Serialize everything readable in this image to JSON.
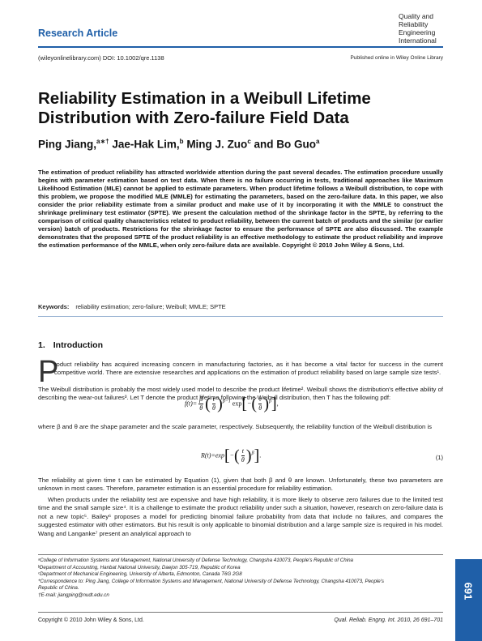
{
  "header": {
    "article_type": "Research Article",
    "journal_lines": [
      "Quality and",
      "Reliability",
      "Engineering",
      "International"
    ],
    "doi": "(wileyonlinelibrary.com) DOI: 10.1002/qre.1138",
    "published": "Published online in Wiley Online Library"
  },
  "title_lines": [
    "Reliability Estimation in a Weibull Lifetime",
    "Distribution with Zero-failure Field Data"
  ],
  "authors": [
    {
      "name": "Ping Jiang,",
      "sup": "a∗†"
    },
    {
      "name": " Jae-Hak Lim,",
      "sup": "b"
    },
    {
      "name": " Ming J. Zuo",
      "sup": "c"
    },
    {
      "name": " and Bo Guo",
      "sup": "a"
    }
  ],
  "abstract": "The estimation of product reliability has attracted worldwide attention during the past several decades. The estimation procedure usually begins with parameter estimation based on test data. When there is no failure occurring in tests, traditional approaches like Maximum Likelihood Estimation (MLE) cannot be applied to estimate parameters. When product lifetime follows a Weibull distribution, to cope with this problem, we propose the modified MLE (MMLE) for estimating the parameters, based on the zero-failure data. In this paper, we also consider the prior reliability estimate from a similar product and make use of it by incorporating it with the MMLE to construct the shrinkage preliminary test estimator (SPTE). We present the calculation method of the shrinkage factor in the SPTE, by referring to the comparison of critical quality characteristics related to product reliability, between the current batch of products and the similar (or earlier version) batch of products. Restrictions for the shrinkage factor to ensure the performance of SPTE are also discussed. The example demonstrates that the proposed SPTE of the product reliability is an effective methodology to estimate the product reliability and improve the estimation performance of the MMLE, when only zero-failure data are available. Copyright © 2010 John Wiley & Sons, Ltd.",
  "keywords": {
    "label": "Keywords:",
    "value": "reliability estimation; zero-failure; Weibull; MMLE; SPTE"
  },
  "section": {
    "number": "1.",
    "title": "Introduction"
  },
  "intro": {
    "dropcap": "P",
    "p1": "roduct reliability has acquired increasing concern in manufacturing factories, as it has become a vital factor for success in the current competitive world. There are extensive researches and applications on the estimation of product reliability based on large sample size tests¹.",
    "p2": "The Weibull distribution is probably the most widely used model to describe the product lifetime². Weibull shows the distribution's effective ability of describing the wear-out failures³. Let T denote the product lifetime following the Weibull distribution, then T has the following pdf:",
    "p3": "where β and θ are the shape parameter and the scale parameter, respectively. Subsequently, the reliability function of the Weibull distribution is",
    "p4": "The reliability at given time t can be estimated by Equation (1), given that both β and θ are known. Unfortunately, these two parameters are unknown in most cases. Therefore, parameter estimation is an essential procedure for reliability estimation.",
    "p5": "When products under the reliability test are expensive and have high reliability, it is more likely to observe zero failures due to the limited test time and the small sample size⁴. It is a challenge to estimate the product reliability under such a situation, however, research on zero-failure data is not a new topic⁵. Bailey⁶ proposes a model for predicting binomial failure probability from data that include no failures, and compares the suggested estimator with other estimators. But his result is only applicable to binomial distribution and a large sample size is required in his model. Wang and Langanke⁷ present an analytical approach to"
  },
  "equations": {
    "eq1_lhs": "f(t)=",
    "eq1_beta": "β",
    "eq1_theta": "θ",
    "eq1_t": "t",
    "eq1_exp_power": "β−1",
    "eq1_exp": "exp",
    "eq1_minus": "−",
    "eq1_power": "β",
    "eq2_lhs": "R(t)=exp",
    "eq2_minus": "−",
    "eq2_t": "t",
    "eq2_theta": "θ",
    "eq2_power": "β",
    "eq2_number": "(1)"
  },
  "footnotes": [
    "ᵃCollege of Information Systems and Management, National University of Defense Technology, Changsha 410073, People's Republic of China",
    "ᵇDepartment of Accounting, Hanbat National University, Daejon 305-719, Republic of Korea",
    "ᶜDepartment of Mechanical Engineering, University of Alberta, Edmonton, Canada T6G 2G8",
    "*Correspondence to: Ping Jiang, College of Information Systems and Management, National University of Defense Technology, Changsha 410073, People's",
    "  Republic of China.",
    "†E-mail: jiangping@nudt.edu.cn"
  ],
  "footer": {
    "copyright": "Copyright © 2010 John Wiley & Sons, Ltd.",
    "citation": "Qual. Reliab. Engng. Int. 2010, 26 691–701",
    "page_number": "691"
  }
}
